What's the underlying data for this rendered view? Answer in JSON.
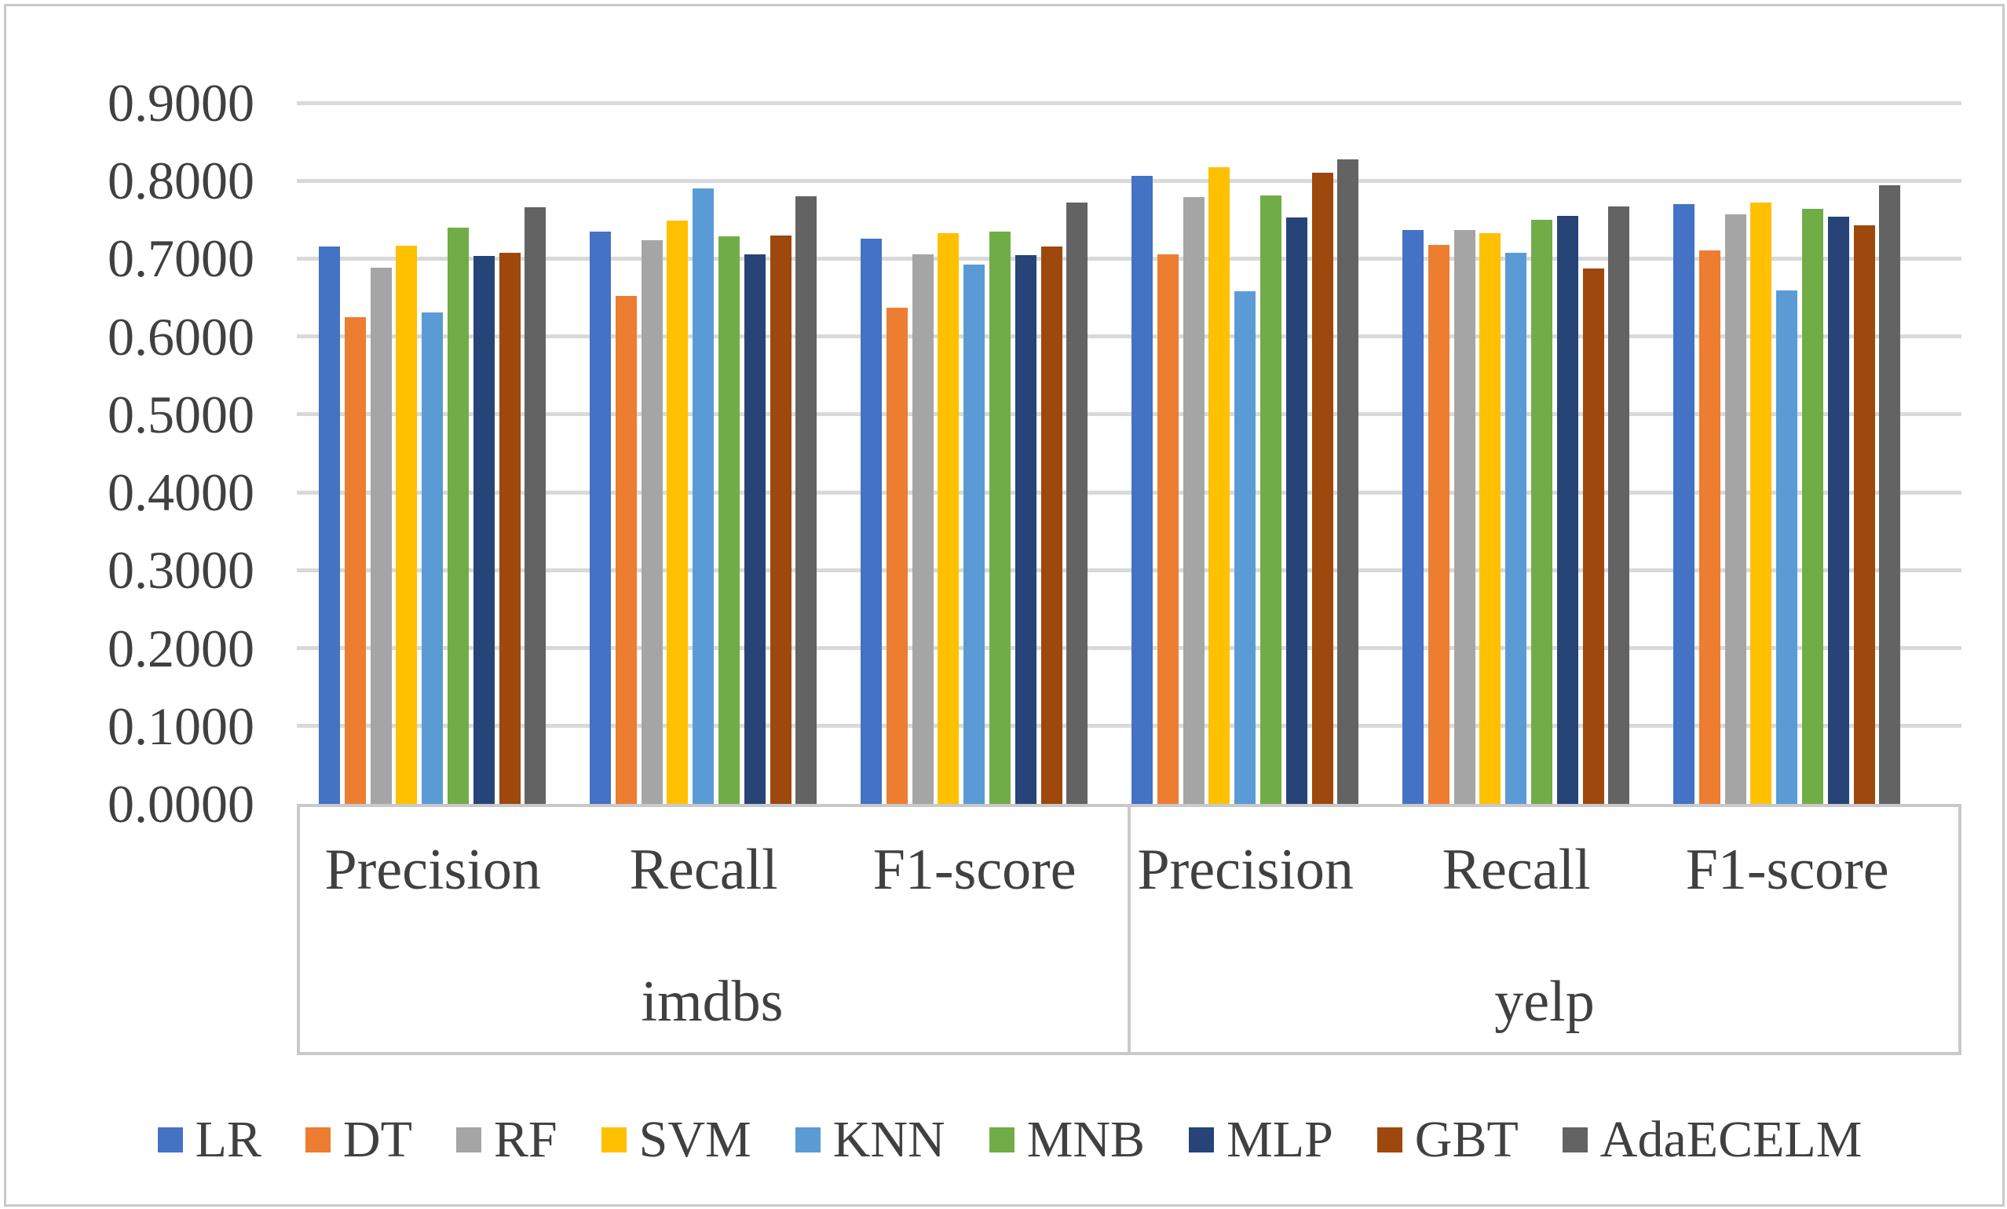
{
  "figure": {
    "border_color": "#c9c9c9",
    "background": "#ffffff",
    "text_color": "#404040",
    "gridline_color": "#d9d9d9",
    "axis_color": "#c9c9c9"
  },
  "chart_data": {
    "type": "bar",
    "title": "",
    "xlabel": "",
    "ylabel": "",
    "ylim": [
      0.0,
      0.9
    ],
    "ytick_step": 0.1,
    "ytick_labels": [
      "0.0000",
      "0.1000",
      "0.2000",
      "0.3000",
      "0.4000",
      "0.5000",
      "0.6000",
      "0.7000",
      "0.8000",
      "0.9000"
    ],
    "grid": true,
    "legend_position": "bottom",
    "categories": [
      "Precision",
      "Recall",
      "F1-score",
      "Precision",
      "Recall",
      "F1-score"
    ],
    "category_groups": [
      {
        "label": "imdbs",
        "span": [
          0,
          2
        ]
      },
      {
        "label": "yelp",
        "span": [
          3,
          5
        ]
      }
    ],
    "series": [
      {
        "name": "LR",
        "color": "#4472C4",
        "values": [
          0.716,
          0.735,
          0.726,
          0.806,
          0.737,
          0.77
        ]
      },
      {
        "name": "DT",
        "color": "#ED7D31",
        "values": [
          0.625,
          0.652,
          0.637,
          0.706,
          0.718,
          0.711
        ]
      },
      {
        "name": "RF",
        "color": "#A5A5A5",
        "values": [
          0.688,
          0.724,
          0.705,
          0.779,
          0.737,
          0.757
        ]
      },
      {
        "name": "SVM",
        "color": "#FFC000",
        "values": [
          0.717,
          0.749,
          0.733,
          0.817,
          0.733,
          0.772
        ]
      },
      {
        "name": "KNN",
        "color": "#5B9BD5",
        "values": [
          0.631,
          0.79,
          0.692,
          0.658,
          0.708,
          0.659
        ]
      },
      {
        "name": "MNB",
        "color": "#70AD47",
        "values": [
          0.74,
          0.729,
          0.735,
          0.781,
          0.75,
          0.764
        ]
      },
      {
        "name": "MLP",
        "color": "#264478",
        "values": [
          0.703,
          0.706,
          0.704,
          0.753,
          0.755,
          0.754
        ]
      },
      {
        "name": "GBT",
        "color": "#9E480E",
        "values": [
          0.708,
          0.73,
          0.716,
          0.81,
          0.687,
          0.743
        ]
      },
      {
        "name": "AdaECELM",
        "color": "#636363",
        "values": [
          0.766,
          0.78,
          0.772,
          0.827,
          0.767,
          0.794
        ]
      }
    ]
  }
}
